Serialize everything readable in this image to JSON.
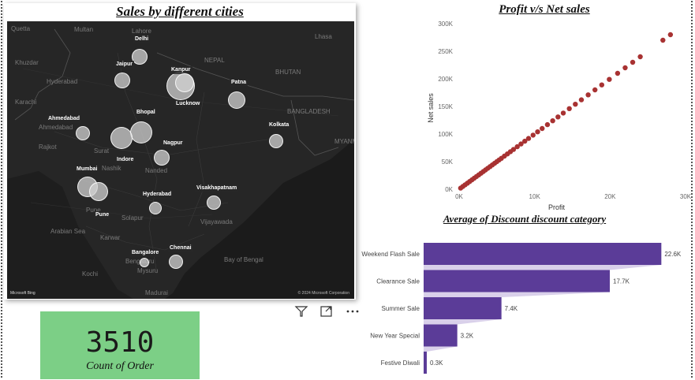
{
  "map_visual": {
    "title": "Sales by different cities",
    "bing_logo": "Microsoft Bing",
    "credit": "© 2024 Microsoft Corporation",
    "base_labels": [
      "Quetta",
      "Multan",
      "Lahore",
      "Khuzdar",
      "Hyderabad",
      "Karachi",
      "NEPAL",
      "BHUTAN",
      "Lhasa",
      "Ahmedabad",
      "Rajkot",
      "Surat",
      "Nashik",
      "Pune",
      "Nanded",
      "Solapur",
      "Karwar",
      "Bengaluru",
      "Mysuru",
      "Kochi",
      "Madurai",
      "Vijayawada",
      "Bay of Bengal",
      "Arabian Sea",
      "BANGLADESH",
      "MYANMAR"
    ],
    "cities": [
      {
        "name": "Delhi"
      },
      {
        "name": "Jaipur"
      },
      {
        "name": "Kanpur"
      },
      {
        "name": "Lucknow"
      },
      {
        "name": "Patna"
      },
      {
        "name": "Ahmedabad"
      },
      {
        "name": "Bhopal"
      },
      {
        "name": "Kolkata"
      },
      {
        "name": "Nagpur"
      },
      {
        "name": "Indore"
      },
      {
        "name": "Mumbai"
      },
      {
        "name": "Visakhapatnam"
      },
      {
        "name": "Hyderabad"
      },
      {
        "name": "Pune"
      },
      {
        "name": "Chennai"
      },
      {
        "name": "Bangalore"
      }
    ]
  },
  "kpi_card": {
    "value": "3510",
    "label": "Count of Order"
  },
  "scatter": {
    "title": "Profit v/s Net sales",
    "xlabel": "Profit",
    "ylabel": "Net sales",
    "xticks": [
      "0K",
      "10K",
      "20K",
      "30K"
    ],
    "yticks": [
      "0K",
      "50K",
      "100K",
      "150K",
      "200K",
      "250K",
      "300K"
    ],
    "color": "#a83232"
  },
  "bar": {
    "title": "Average of Discount discount category",
    "color": "#5b3c98"
  },
  "chart_data": [
    {
      "type": "scatter",
      "title": "Profit v/s Net sales",
      "xlabel": "Profit",
      "ylabel": "Net sales",
      "xlim": [
        0,
        30000
      ],
      "ylim": [
        0,
        300000
      ],
      "x": [
        200,
        500,
        800,
        1100,
        1400,
        1700,
        2000,
        2300,
        2600,
        2900,
        3200,
        3500,
        3800,
        4100,
        4400,
        4700,
        5000,
        5300,
        5600,
        6000,
        6400,
        6800,
        7200,
        7700,
        8200,
        8700,
        9200,
        9800,
        10400,
        11000,
        11700,
        12400,
        13100,
        13800,
        14600,
        15400,
        16200,
        17100,
        18000,
        18900,
        19900,
        21000,
        22000,
        23000,
        24000,
        27000,
        28000
      ],
      "y": [
        2000,
        5000,
        8000,
        11000,
        14000,
        17000,
        20000,
        23000,
        26000,
        29000,
        32000,
        35000,
        38000,
        41000,
        44000,
        47000,
        50000,
        53000,
        56000,
        60000,
        64000,
        68000,
        72000,
        77000,
        82000,
        87000,
        92000,
        98000,
        104000,
        110000,
        117000,
        124000,
        131000,
        138000,
        146000,
        154000,
        162000,
        171000,
        180000,
        189000,
        199000,
        210000,
        220000,
        230000,
        240000,
        270000,
        280000
      ]
    },
    {
      "type": "bar",
      "orientation": "horizontal",
      "title": "Average of Discount discount category",
      "categories": [
        "Weekend Flash Sale",
        "Clearance Sale",
        "Summer Sale",
        "New Year Special",
        "Festive Diwali"
      ],
      "values": [
        22600,
        17700,
        7400,
        3200,
        300
      ],
      "labels": [
        "22.6K",
        "17.7K",
        "7.4K",
        "3.2K",
        "0.3K"
      ],
      "xlim": [
        0,
        24000
      ]
    }
  ]
}
